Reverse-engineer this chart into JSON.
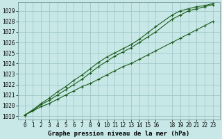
{
  "title": "Graphe pression niveau de la mer (hPa)",
  "bg_color": "#c8e8e8",
  "grid_color": "#a0c8c8",
  "line_color": "#1a5c1a",
  "marker": "+",
  "x_labels": [
    "0",
    "1",
    "2",
    "3",
    "4",
    "5",
    "6",
    "7",
    "8",
    "9",
    "10",
    "11",
    "12",
    "13",
    "14",
    "15",
    "16",
    "18",
    "19",
    "20",
    "21",
    "22",
    "23"
  ],
  "x_values": [
    0,
    1,
    2,
    3,
    4,
    5,
    6,
    7,
    8,
    9,
    10,
    11,
    12,
    13,
    14,
    15,
    16,
    18,
    19,
    20,
    21,
    22,
    23
  ],
  "ylim_min": 1018.7,
  "ylim_max": 1029.8,
  "y_ticks": [
    1019,
    1020,
    1021,
    1022,
    1023,
    1024,
    1025,
    1026,
    1027,
    1028,
    1029
  ],
  "line1_x": [
    0,
    1,
    2,
    3,
    4,
    5,
    6,
    7,
    8,
    9,
    10,
    11,
    12,
    13,
    14,
    15,
    16,
    18,
    19,
    20,
    21,
    22,
    23
  ],
  "line1_y": [
    1019.1,
    1019.5,
    1019.9,
    1020.2,
    1020.6,
    1021.0,
    1021.4,
    1021.8,
    1022.1,
    1022.5,
    1022.9,
    1023.3,
    1023.7,
    1024.0,
    1024.4,
    1024.8,
    1025.2,
    1026.0,
    1026.4,
    1026.8,
    1027.2,
    1027.6,
    1028.0
  ],
  "line2_x": [
    0,
    1,
    2,
    3,
    4,
    5,
    6,
    7,
    8,
    9,
    10,
    11,
    12,
    13,
    14,
    15,
    16,
    18,
    19,
    20,
    21,
    22,
    23
  ],
  "line2_y": [
    1019.1,
    1019.5,
    1020.1,
    1020.5,
    1021.0,
    1021.5,
    1022.0,
    1022.5,
    1023.1,
    1023.7,
    1024.2,
    1024.7,
    1025.1,
    1025.5,
    1026.0,
    1026.5,
    1027.0,
    1028.2,
    1028.6,
    1029.0,
    1029.2,
    1029.4,
    1029.6
  ],
  "line3_x": [
    0,
    1,
    2,
    3,
    4,
    5,
    6,
    7,
    8,
    9,
    10,
    11,
    12,
    13,
    14,
    15,
    16,
    18,
    19,
    20,
    21,
    22,
    23
  ],
  "line3_y": [
    1019.1,
    1019.6,
    1020.2,
    1020.7,
    1021.3,
    1021.8,
    1022.4,
    1022.9,
    1023.5,
    1024.1,
    1024.6,
    1025.0,
    1025.4,
    1025.8,
    1026.3,
    1026.9,
    1027.5,
    1028.6,
    1029.0,
    1029.2,
    1029.4,
    1029.5,
    1029.7
  ],
  "tick_fontsize": 5.5,
  "xlabel_fontsize": 6.5,
  "marker_size": 3.5,
  "line_width": 0.8
}
